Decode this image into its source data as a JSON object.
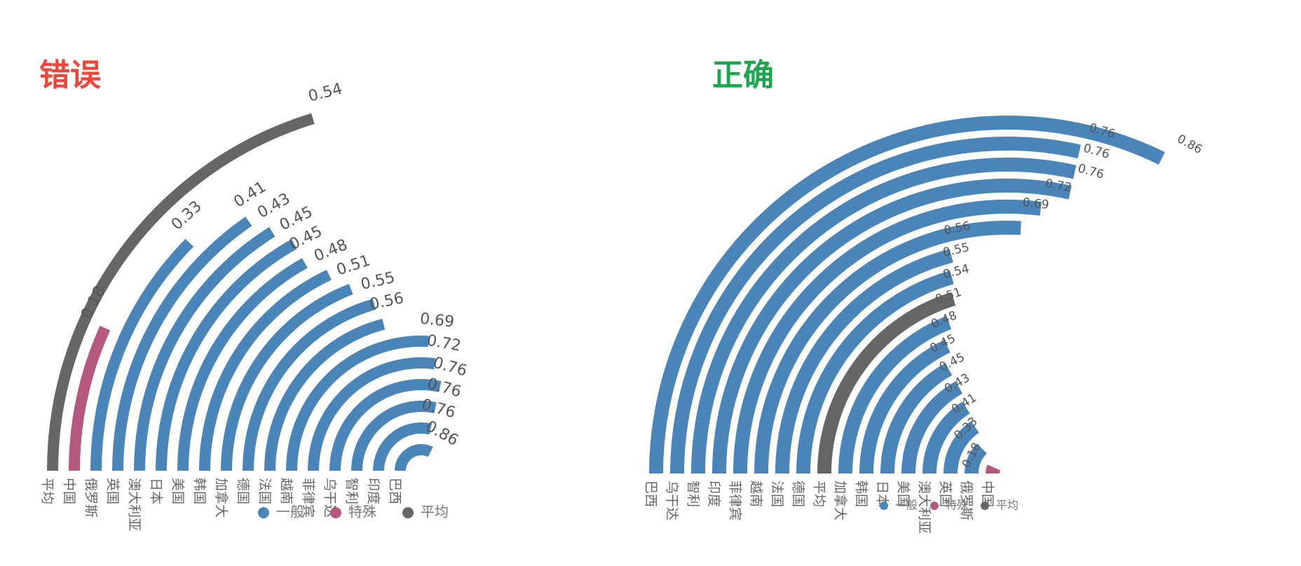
{
  "colors": {
    "general": "#4a85ba",
    "special": "#b5587d",
    "average": "#666666",
    "wrong_title": "#f0453a",
    "right_title": "#1aa84c"
  },
  "legend": [
    {
      "key": "general",
      "label": "一般"
    },
    {
      "key": "special",
      "label": "特殊"
    },
    {
      "key": "average",
      "label": "平均"
    }
  ],
  "chart_data": [
    {
      "type": "radial-bar",
      "title": "错误",
      "categories": [
        "平均",
        "中国",
        "俄罗斯",
        "英国",
        "澳大利亚",
        "日本",
        "美国",
        "韩国",
        "加拿大",
        "德国",
        "法国",
        "越南",
        "菲律宾",
        "乌干达",
        "智利",
        "印度",
        "巴西"
      ],
      "values": [
        0.54,
        0.18,
        0.33,
        0.41,
        0.43,
        0.45,
        0.45,
        0.48,
        0.51,
        0.55,
        0.56,
        0.69,
        0.72,
        0.76,
        0.76,
        0.76,
        0.86
      ],
      "groups": [
        "average",
        "special",
        "general",
        "general",
        "general",
        "general",
        "general",
        "general",
        "general",
        "general",
        "general",
        "general",
        "general",
        "general",
        "general",
        "general",
        "general"
      ],
      "max": 1.0
    },
    {
      "type": "radial-bar",
      "title": "正确",
      "categories": [
        "巴西",
        "乌干达",
        "智利",
        "印度",
        "菲律宾",
        "越南",
        "法国",
        "德国",
        "平均",
        "加拿大",
        "韩国",
        "日本",
        "美国",
        "澳大利亚",
        "英国",
        "俄罗斯",
        "中国"
      ],
      "values": [
        0.86,
        0.76,
        0.76,
        0.76,
        0.72,
        0.69,
        0.56,
        0.55,
        0.54,
        0.51,
        0.48,
        0.45,
        0.45,
        0.43,
        0.41,
        0.33,
        0.18
      ],
      "groups": [
        "general",
        "general",
        "general",
        "general",
        "general",
        "general",
        "general",
        "general",
        "average",
        "general",
        "general",
        "general",
        "general",
        "general",
        "general",
        "general",
        "special"
      ],
      "max": 1.0
    }
  ]
}
